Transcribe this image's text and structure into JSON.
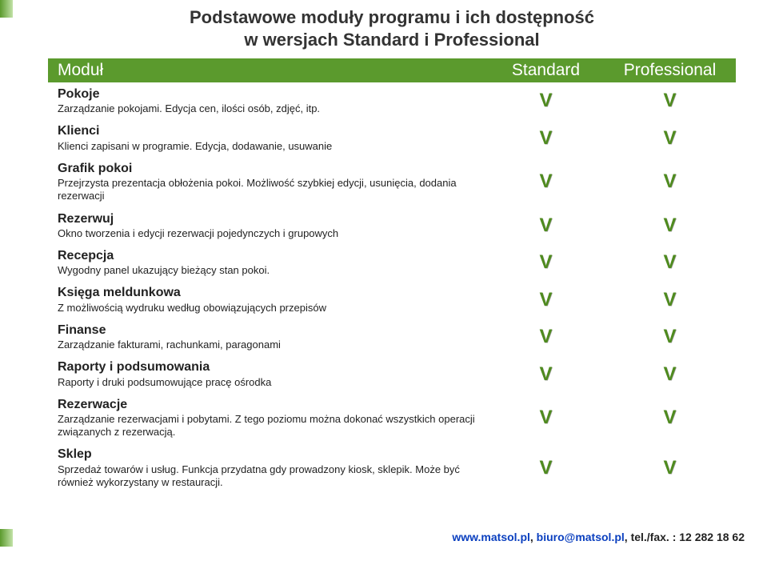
{
  "title_line1": "Podstawowe moduły programu i ich dostępność",
  "title_line2": "w wersjach Standard i Professional",
  "header": {
    "module": "Moduł",
    "standard": "Standard",
    "professional": "Professional"
  },
  "rows": [
    {
      "title": "Pokoje",
      "desc": "Zarządzanie pokojami. Edycja cen, ilości osób, zdjęć, itp.",
      "std": true,
      "pro": true
    },
    {
      "title": "Klienci",
      "desc": "Klienci zapisani w programie. Edycja, dodawanie, usuwanie",
      "std": true,
      "pro": true
    },
    {
      "title": "Grafik pokoi",
      "desc": "Przejrzysta prezentacja obłożenia pokoi. Możliwość szybkiej edycji, usunięcia, dodania rezerwacji",
      "std": true,
      "pro": true
    },
    {
      "title": "Rezerwuj",
      "desc": "Okno tworzenia i edycji rezerwacji pojedynczych i grupowych",
      "std": true,
      "pro": true
    },
    {
      "title": "Recepcja",
      "desc": "Wygodny panel ukazujący bieżący stan pokoi.",
      "std": true,
      "pro": true
    },
    {
      "title": "Księga meldunkowa",
      "desc": "Z możliwością wydruku według obowiązujących przepisów",
      "std": true,
      "pro": true
    },
    {
      "title": "Finanse",
      "desc": "Zarządzanie fakturami, rachunkami, paragonami",
      "std": true,
      "pro": true
    },
    {
      "title": "Raporty i podsumowania",
      "desc": "Raporty i druki podsumowujące pracę ośrodka",
      "std": true,
      "pro": true
    },
    {
      "title": "Rezerwacje",
      "desc": "Zarządzanie rezerwacjami i pobytami. Z tego poziomu można dokonać wszystkich operacji związanych z rezerwacją.",
      "std": true,
      "pro": true
    },
    {
      "title": "Sklep",
      "desc": "Sprzedaż towarów i usług. Funkcja przydatna gdy prowadzony kiosk, sklepik. Może być również wykorzystany w restauracji.",
      "std": true,
      "pro": true
    }
  ],
  "footer": {
    "link1": "www.matsol.pl",
    "sep1": ", ",
    "link2": "biuro@matsol.pl",
    "sep2": ", ",
    "tel_label": "tel./fax. : ",
    "tel": "12 282 18 62"
  },
  "colors": {
    "header_bg": "#5b9a2d",
    "check_color": "#4f8b1f",
    "link_color": "#0a3fbf",
    "text_color": "#222222",
    "background": "#ffffff",
    "gradient_from": "#5b9a2d",
    "gradient_to": "#c2e2a7"
  },
  "check_glyph": "V"
}
